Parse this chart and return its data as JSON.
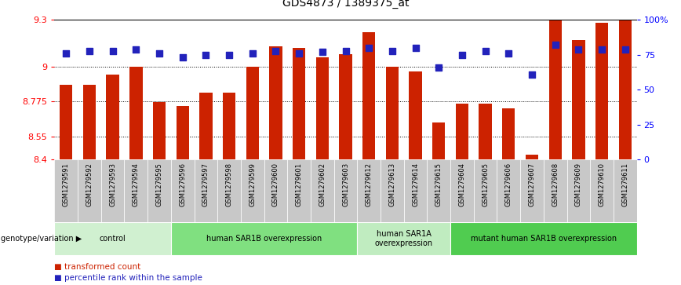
{
  "title": "GDS4873 / 1389375_at",
  "samples": [
    "GSM1279591",
    "GSM1279592",
    "GSM1279593",
    "GSM1279594",
    "GSM1279595",
    "GSM1279596",
    "GSM1279597",
    "GSM1279598",
    "GSM1279599",
    "GSM1279600",
    "GSM1279601",
    "GSM1279602",
    "GSM1279603",
    "GSM1279612",
    "GSM1279613",
    "GSM1279614",
    "GSM1279615",
    "GSM1279604",
    "GSM1279605",
    "GSM1279606",
    "GSM1279607",
    "GSM1279608",
    "GSM1279609",
    "GSM1279610",
    "GSM1279611"
  ],
  "transformed_count": [
    8.88,
    8.88,
    8.95,
    9.0,
    8.77,
    8.745,
    8.83,
    8.83,
    9.0,
    9.13,
    9.12,
    9.06,
    9.08,
    9.22,
    9.0,
    8.97,
    8.64,
    8.76,
    8.76,
    8.73,
    8.43,
    9.3,
    9.17,
    9.28,
    9.3
  ],
  "percentile_rank": [
    76,
    78,
    78,
    79,
    76,
    73,
    75,
    75,
    76,
    78,
    76,
    77,
    78,
    80,
    78,
    80,
    66,
    75,
    78,
    76,
    61,
    82,
    79,
    79,
    79
  ],
  "groups": [
    {
      "label": "control",
      "start": 0,
      "end": 5,
      "color": "#d0f0d0"
    },
    {
      "label": "human SAR1B overexpression",
      "start": 5,
      "end": 13,
      "color": "#80e080"
    },
    {
      "label": "human SAR1A\noverexpression",
      "start": 13,
      "end": 17,
      "color": "#c0ecc0"
    },
    {
      "label": "mutant human SAR1B overexpression",
      "start": 17,
      "end": 25,
      "color": "#50cc50"
    }
  ],
  "ylim": [
    8.4,
    9.3
  ],
  "yticks": [
    8.4,
    8.55,
    8.775,
    9.0,
    9.3
  ],
  "ytick_labels": [
    "8.4",
    "8.55",
    "8.775",
    "9",
    "9.3"
  ],
  "right_yticks": [
    0,
    25,
    50,
    75,
    100
  ],
  "right_ytick_labels": [
    "0",
    "25",
    "50",
    "75",
    "100%"
  ],
  "bar_color": "#cc2200",
  "dot_color": "#2222bb",
  "bar_width": 0.55,
  "dot_size": 35,
  "genotype_label": "genotype/variation",
  "legend_bar": "transformed count",
  "legend_dot": "percentile rank within the sample",
  "tick_label_bg": "#c8c8c8",
  "plot_bg": "#ffffff",
  "grid_color": "#000000",
  "top_line_color": "#000000"
}
